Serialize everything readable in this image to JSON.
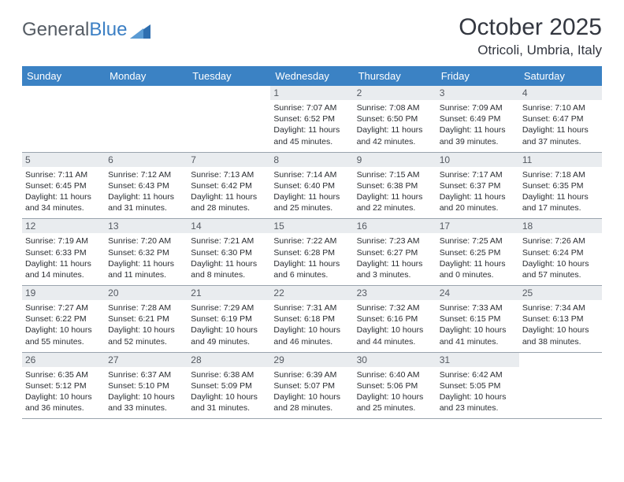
{
  "logo": {
    "word1": "General",
    "word2": "Blue"
  },
  "title": "October 2025",
  "location": "Otricoli, Umbria, Italy",
  "colors": {
    "header_bg": "#3b82c4",
    "header_fg": "#ffffff",
    "daynum_bg": "#e9ecef",
    "border": "#9aa4ae",
    "title_color": "#333740"
  },
  "weekdays": [
    "Sunday",
    "Monday",
    "Tuesday",
    "Wednesday",
    "Thursday",
    "Friday",
    "Saturday"
  ],
  "weeks": [
    [
      {
        "n": "",
        "sr": "",
        "ss": "",
        "dl": ""
      },
      {
        "n": "",
        "sr": "",
        "ss": "",
        "dl": ""
      },
      {
        "n": "",
        "sr": "",
        "ss": "",
        "dl": ""
      },
      {
        "n": "1",
        "sr": "7:07 AM",
        "ss": "6:52 PM",
        "dl": "11 hours and 45 minutes."
      },
      {
        "n": "2",
        "sr": "7:08 AM",
        "ss": "6:50 PM",
        "dl": "11 hours and 42 minutes."
      },
      {
        "n": "3",
        "sr": "7:09 AM",
        "ss": "6:49 PM",
        "dl": "11 hours and 39 minutes."
      },
      {
        "n": "4",
        "sr": "7:10 AM",
        "ss": "6:47 PM",
        "dl": "11 hours and 37 minutes."
      }
    ],
    [
      {
        "n": "5",
        "sr": "7:11 AM",
        "ss": "6:45 PM",
        "dl": "11 hours and 34 minutes."
      },
      {
        "n": "6",
        "sr": "7:12 AM",
        "ss": "6:43 PM",
        "dl": "11 hours and 31 minutes."
      },
      {
        "n": "7",
        "sr": "7:13 AM",
        "ss": "6:42 PM",
        "dl": "11 hours and 28 minutes."
      },
      {
        "n": "8",
        "sr": "7:14 AM",
        "ss": "6:40 PM",
        "dl": "11 hours and 25 minutes."
      },
      {
        "n": "9",
        "sr": "7:15 AM",
        "ss": "6:38 PM",
        "dl": "11 hours and 22 minutes."
      },
      {
        "n": "10",
        "sr": "7:17 AM",
        "ss": "6:37 PM",
        "dl": "11 hours and 20 minutes."
      },
      {
        "n": "11",
        "sr": "7:18 AM",
        "ss": "6:35 PM",
        "dl": "11 hours and 17 minutes."
      }
    ],
    [
      {
        "n": "12",
        "sr": "7:19 AM",
        "ss": "6:33 PM",
        "dl": "11 hours and 14 minutes."
      },
      {
        "n": "13",
        "sr": "7:20 AM",
        "ss": "6:32 PM",
        "dl": "11 hours and 11 minutes."
      },
      {
        "n": "14",
        "sr": "7:21 AM",
        "ss": "6:30 PM",
        "dl": "11 hours and 8 minutes."
      },
      {
        "n": "15",
        "sr": "7:22 AM",
        "ss": "6:28 PM",
        "dl": "11 hours and 6 minutes."
      },
      {
        "n": "16",
        "sr": "7:23 AM",
        "ss": "6:27 PM",
        "dl": "11 hours and 3 minutes."
      },
      {
        "n": "17",
        "sr": "7:25 AM",
        "ss": "6:25 PM",
        "dl": "11 hours and 0 minutes."
      },
      {
        "n": "18",
        "sr": "7:26 AM",
        "ss": "6:24 PM",
        "dl": "10 hours and 57 minutes."
      }
    ],
    [
      {
        "n": "19",
        "sr": "7:27 AM",
        "ss": "6:22 PM",
        "dl": "10 hours and 55 minutes."
      },
      {
        "n": "20",
        "sr": "7:28 AM",
        "ss": "6:21 PM",
        "dl": "10 hours and 52 minutes."
      },
      {
        "n": "21",
        "sr": "7:29 AM",
        "ss": "6:19 PM",
        "dl": "10 hours and 49 minutes."
      },
      {
        "n": "22",
        "sr": "7:31 AM",
        "ss": "6:18 PM",
        "dl": "10 hours and 46 minutes."
      },
      {
        "n": "23",
        "sr": "7:32 AM",
        "ss": "6:16 PM",
        "dl": "10 hours and 44 minutes."
      },
      {
        "n": "24",
        "sr": "7:33 AM",
        "ss": "6:15 PM",
        "dl": "10 hours and 41 minutes."
      },
      {
        "n": "25",
        "sr": "7:34 AM",
        "ss": "6:13 PM",
        "dl": "10 hours and 38 minutes."
      }
    ],
    [
      {
        "n": "26",
        "sr": "6:35 AM",
        "ss": "5:12 PM",
        "dl": "10 hours and 36 minutes."
      },
      {
        "n": "27",
        "sr": "6:37 AM",
        "ss": "5:10 PM",
        "dl": "10 hours and 33 minutes."
      },
      {
        "n": "28",
        "sr": "6:38 AM",
        "ss": "5:09 PM",
        "dl": "10 hours and 31 minutes."
      },
      {
        "n": "29",
        "sr": "6:39 AM",
        "ss": "5:07 PM",
        "dl": "10 hours and 28 minutes."
      },
      {
        "n": "30",
        "sr": "6:40 AM",
        "ss": "5:06 PM",
        "dl": "10 hours and 25 minutes."
      },
      {
        "n": "31",
        "sr": "6:42 AM",
        "ss": "5:05 PM",
        "dl": "10 hours and 23 minutes."
      },
      {
        "n": "",
        "sr": "",
        "ss": "",
        "dl": ""
      }
    ]
  ],
  "labels": {
    "sunrise": "Sunrise:",
    "sunset": "Sunset:",
    "daylight": "Daylight:"
  }
}
